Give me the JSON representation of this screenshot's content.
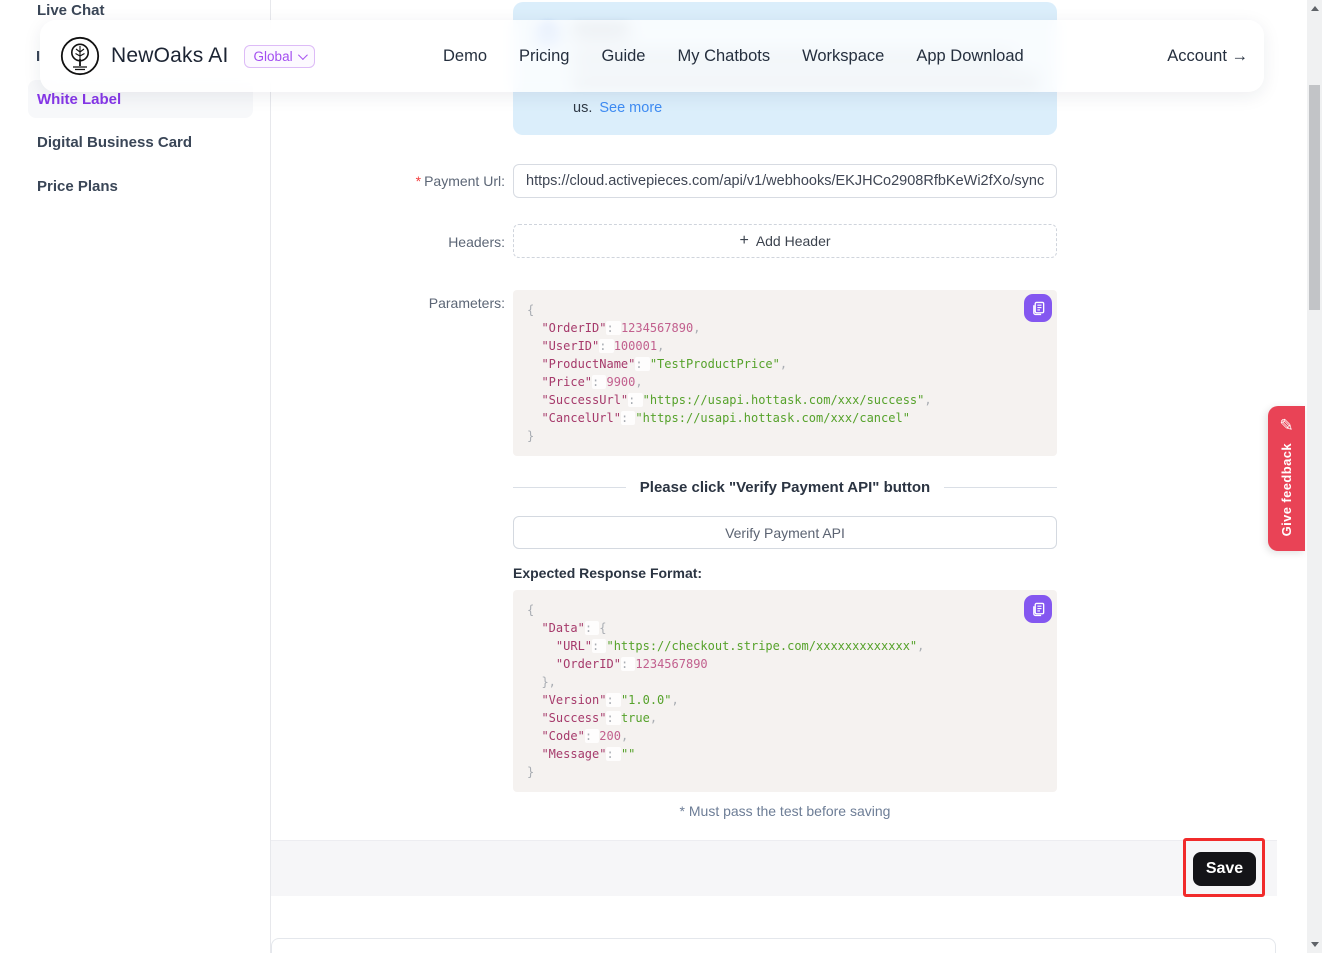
{
  "brand": {
    "name": "NewOaks AI",
    "region": "Global"
  },
  "nav": {
    "links": [
      "Demo",
      "Pricing",
      "Guide",
      "My Chatbots",
      "Workspace",
      "App Download"
    ],
    "account": "Account →"
  },
  "sidebar": {
    "items": [
      {
        "label": "Live Chat"
      },
      {
        "label": "I"
      },
      {
        "label": "White Label"
      },
      {
        "label": "Digital Business Card"
      },
      {
        "label": "Price Plans"
      }
    ]
  },
  "reminder": {
    "tail": "us.",
    "see_more": "See more"
  },
  "form": {
    "required_mark": "*",
    "payment_url_label": "Payment Url:",
    "payment_url_value": "https://cloud.activepieces.com/api/v1/webhooks/EKJHCo2908RfbKeWi2fXo/sync",
    "headers_label": "Headers:",
    "plus_glyph": "+",
    "add_header": "Add Header",
    "parameters_label": "Parameters:",
    "divider_text": "Please click \"Verify Payment API\" button",
    "verify_button": "Verify Payment API",
    "expected_label": "Expected Response Format:",
    "note": "* Must pass the test before saving",
    "save": "Save"
  },
  "code_blocks": {
    "parameters": [
      [
        [
          "punc",
          "{"
        ]
      ],
      [
        [
          "sp",
          "  "
        ],
        [
          "key",
          "\"OrderID\""
        ],
        [
          "colon",
          ": "
        ],
        [
          "num",
          "1234567890"
        ],
        [
          "punc",
          ","
        ]
      ],
      [
        [
          "sp",
          "  "
        ],
        [
          "key",
          "\"UserID\""
        ],
        [
          "colon",
          ": "
        ],
        [
          "num",
          "100001"
        ],
        [
          "punc",
          ","
        ]
      ],
      [
        [
          "sp",
          "  "
        ],
        [
          "key",
          "\"ProductName\""
        ],
        [
          "colon",
          ": "
        ],
        [
          "str",
          "\"TestProductPrice\""
        ],
        [
          "punc",
          ","
        ]
      ],
      [
        [
          "sp",
          "  "
        ],
        [
          "key",
          "\"Price\""
        ],
        [
          "colon",
          ": "
        ],
        [
          "num",
          "9900"
        ],
        [
          "punc",
          ","
        ]
      ],
      [
        [
          "sp",
          "  "
        ],
        [
          "key",
          "\"SuccessUrl\""
        ],
        [
          "colon",
          ": "
        ],
        [
          "str",
          "\"https://usapi.hottask.com/xxx/success\""
        ],
        [
          "punc",
          ","
        ]
      ],
      [
        [
          "sp",
          "  "
        ],
        [
          "key",
          "\"CancelUrl\""
        ],
        [
          "colon",
          ": "
        ],
        [
          "str",
          "\"https://usapi.hottask.com/xxx/cancel\""
        ]
      ],
      [
        [
          "punc",
          "}"
        ]
      ]
    ],
    "expected": [
      [
        [
          "punc",
          "{"
        ]
      ],
      [
        [
          "sp",
          "  "
        ],
        [
          "key",
          "\"Data\""
        ],
        [
          "colon",
          ": "
        ],
        [
          "punc",
          "{"
        ]
      ],
      [
        [
          "sp",
          "    "
        ],
        [
          "key",
          "\"URL\""
        ],
        [
          "colon",
          ": "
        ],
        [
          "str",
          "\"https://checkout.stripe.com/xxxxxxxxxxxxx\""
        ],
        [
          "punc",
          ","
        ]
      ],
      [
        [
          "sp",
          "    "
        ],
        [
          "key",
          "\"OrderID\""
        ],
        [
          "colon",
          ": "
        ],
        [
          "num",
          "1234567890"
        ]
      ],
      [
        [
          "sp",
          "  "
        ],
        [
          "punc",
          "},"
        ]
      ],
      [
        [
          "sp",
          "  "
        ],
        [
          "key",
          "\"Version\""
        ],
        [
          "colon",
          ": "
        ],
        [
          "str",
          "\"1.0.0\""
        ],
        [
          "punc",
          ","
        ]
      ],
      [
        [
          "sp",
          "  "
        ],
        [
          "key",
          "\"Success\""
        ],
        [
          "colon",
          ": "
        ],
        [
          "bool",
          "true"
        ],
        [
          "punc",
          ","
        ]
      ],
      [
        [
          "sp",
          "  "
        ],
        [
          "key",
          "\"Code\""
        ],
        [
          "colon",
          ": "
        ],
        [
          "num",
          "200"
        ],
        [
          "punc",
          ","
        ]
      ],
      [
        [
          "sp",
          "  "
        ],
        [
          "key",
          "\"Message\""
        ],
        [
          "colon",
          ": "
        ],
        [
          "str",
          "\"\""
        ]
      ],
      [
        [
          "punc",
          "}"
        ]
      ]
    ]
  },
  "feedback_tab": {
    "label": "Give feedback",
    "icon_glyph": "✎"
  },
  "colors": {
    "accent_purple": "#8636e8",
    "copy_button_purple": "#8457f0",
    "feedback_red": "#e94356",
    "annotation_red": "#f12b2b",
    "save_black": "#141418",
    "reminder_blue_bg": "#dbeefb",
    "link_blue": "#3f8cf3",
    "code_key": "#a63a6b",
    "code_number": "#c2608e",
    "code_string": "#56a22b"
  }
}
